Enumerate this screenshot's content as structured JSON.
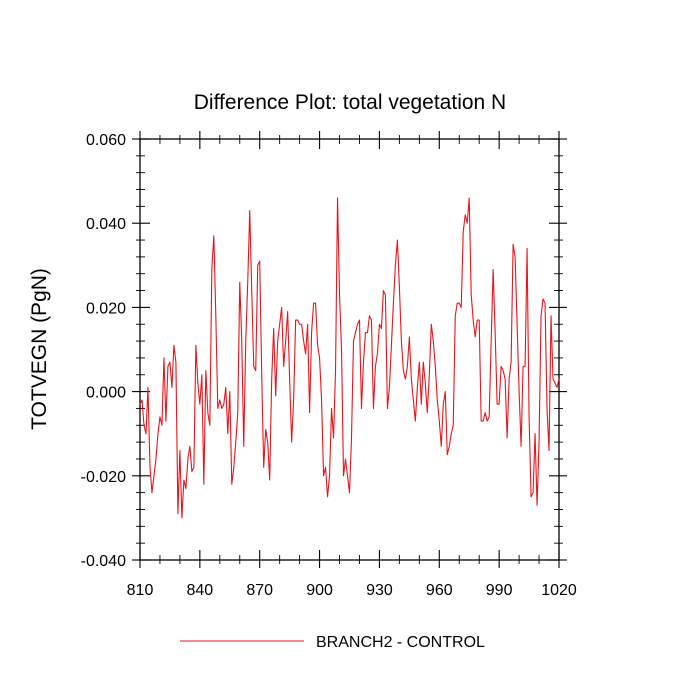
{
  "chart_data": {
    "type": "line",
    "title": "Difference Plot: total vegetation N",
    "xlabel": "",
    "ylabel": "TOTVEGN  (PgN)",
    "xlim": [
      810,
      1020
    ],
    "ylim": [
      -0.04,
      0.06
    ],
    "x_ticks": [
      810,
      840,
      870,
      900,
      930,
      960,
      990,
      1020
    ],
    "x_tick_labels": [
      "810",
      "840",
      "870",
      "900",
      "930",
      "960",
      "990",
      "1020"
    ],
    "y_ticks": [
      -0.04,
      -0.02,
      0.0,
      0.02,
      0.04,
      0.06
    ],
    "y_tick_labels": [
      "-0.040",
      "-0.020",
      "0.000",
      "0.020",
      "0.040",
      "0.060"
    ],
    "grid": false,
    "legend_position": "bottom",
    "series": [
      {
        "name": "BRANCH2 - CONTROL",
        "color": "#e8141b",
        "x": [
          810,
          811,
          812,
          813,
          814,
          815,
          816,
          817,
          818,
          819,
          820,
          821,
          822,
          823,
          824,
          825,
          826,
          827,
          828,
          829,
          830,
          831,
          832,
          833,
          834,
          835,
          836,
          837,
          838,
          839,
          840,
          841,
          842,
          843,
          844,
          845,
          846,
          847,
          848,
          849,
          850,
          851,
          852,
          853,
          854,
          855,
          856,
          857,
          858,
          859,
          860,
          861,
          862,
          863,
          864,
          865,
          866,
          867,
          868,
          869,
          870,
          871,
          872,
          873,
          874,
          875,
          876,
          877,
          878,
          879,
          880,
          881,
          882,
          883,
          884,
          885,
          886,
          887,
          888,
          889,
          890,
          891,
          892,
          893,
          894,
          895,
          896,
          897,
          898,
          899,
          900,
          901,
          902,
          903,
          904,
          905,
          906,
          907,
          908,
          909,
          910,
          911,
          912,
          913,
          914,
          915,
          916,
          917,
          918,
          919,
          920,
          921,
          922,
          923,
          924,
          925,
          926,
          927,
          928,
          929,
          930,
          931,
          932,
          933,
          934,
          935,
          936,
          937,
          938,
          939,
          940,
          941,
          942,
          943,
          944,
          945,
          946,
          947,
          948,
          949,
          950,
          951,
          952,
          953,
          954,
          955,
          956,
          957,
          958,
          959,
          960,
          961,
          962,
          963,
          964,
          965,
          966,
          967,
          968,
          969,
          970,
          971,
          972,
          973,
          974,
          975,
          976,
          977,
          978,
          979,
          980,
          981,
          982,
          983,
          984,
          985,
          986,
          987,
          988,
          989,
          990,
          991,
          992,
          993,
          994,
          995,
          996,
          997,
          998,
          999,
          1000,
          1001,
          1002,
          1003,
          1004,
          1005,
          1006,
          1007,
          1008,
          1009,
          1010,
          1011,
          1012,
          1013,
          1014,
          1015,
          1016,
          1017,
          1018,
          1019,
          1020
        ],
        "values": [
          -0.003,
          -0.002,
          -0.008,
          -0.01,
          0.001,
          -0.018,
          -0.024,
          -0.02,
          -0.016,
          -0.01,
          -0.006,
          -0.008,
          0.008,
          -0.007,
          0.006,
          0.007,
          0.001,
          0.011,
          0.007,
          -0.029,
          -0.014,
          -0.03,
          -0.021,
          -0.023,
          -0.016,
          -0.013,
          -0.019,
          -0.018,
          0.011,
          0.002,
          -0.003,
          0.004,
          -0.022,
          0.005,
          -0.005,
          -0.008,
          0.029,
          0.037,
          0.018,
          -0.004,
          -0.002,
          -0.004,
          -0.003,
          0.001,
          -0.01,
          0.0,
          -0.022,
          -0.018,
          -0.012,
          -0.005,
          0.026,
          0.012,
          -0.013,
          0.012,
          0.026,
          0.043,
          0.024,
          0.006,
          0.005,
          0.03,
          0.031,
          0.004,
          -0.018,
          -0.009,
          -0.012,
          -0.021,
          0.003,
          0.015,
          -0.001,
          0.012,
          0.016,
          0.02,
          0.006,
          0.012,
          0.019,
          0.003,
          -0.012,
          -0.002,
          0.017,
          0.017,
          0.016,
          0.016,
          0.012,
          0.009,
          0.016,
          -0.005,
          0.014,
          0.021,
          0.021,
          0.011,
          0.008,
          -0.002,
          -0.02,
          -0.018,
          -0.025,
          -0.02,
          -0.004,
          -0.011,
          0.005,
          0.046,
          0.023,
          0.01,
          -0.02,
          -0.016,
          -0.02,
          -0.024,
          -0.011,
          0.012,
          0.014,
          0.016,
          0.017,
          -0.004,
          0.007,
          0.014,
          0.014,
          0.018,
          0.017,
          -0.004,
          0.006,
          0.009,
          0.016,
          0.015,
          0.024,
          0.023,
          -0.004,
          0.001,
          0.011,
          0.021,
          0.03,
          0.036,
          0.025,
          0.012,
          0.005,
          0.003,
          0.006,
          0.013,
          0.003,
          -0.002,
          -0.007,
          0.001,
          0.007,
          -0.003,
          0.007,
          0.002,
          -0.005,
          0.004,
          0.016,
          0.012,
          0.006,
          -0.002,
          -0.007,
          -0.013,
          -0.003,
          0.0,
          -0.015,
          -0.013,
          -0.01,
          -0.008,
          0.018,
          0.021,
          0.021,
          0.02,
          0.038,
          0.042,
          0.04,
          0.046,
          0.023,
          0.017,
          0.013,
          0.017,
          0.017,
          -0.007,
          -0.007,
          -0.005,
          -0.007,
          -0.006,
          0.012,
          0.029,
          0.014,
          -0.003,
          -0.003,
          0.006,
          0.005,
          0.003,
          -0.011,
          0.003,
          0.007,
          0.035,
          0.032,
          0.016,
          0.0,
          -0.013,
          0.006,
          0.006,
          0.034,
          -0.006,
          -0.025,
          -0.024,
          -0.01,
          -0.027,
          -0.012,
          0.018,
          0.022,
          0.021,
          -0.004,
          -0.014,
          0.018,
          0.003,
          0.002,
          0.001,
          0.003
        ]
      }
    ]
  }
}
